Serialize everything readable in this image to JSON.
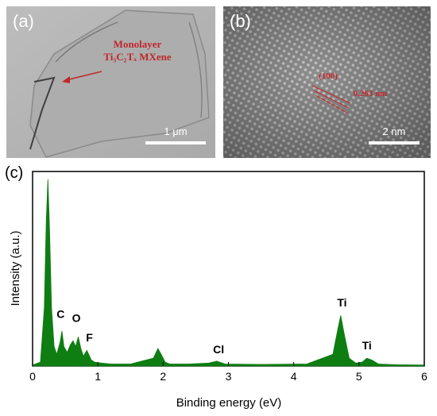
{
  "panel_a": {
    "letter": "(a)",
    "annotation_line1": "Monolayer",
    "annotation_line2": "Ti₃C₂Tₓ MXene",
    "scale_label": "1 μm"
  },
  "panel_b": {
    "letter": "(b)",
    "plane_label": "(100)",
    "spacing_label": "0.263 nm",
    "scale_label": "2 nm"
  },
  "colors": {
    "series": "#0e7d12",
    "annotation": "#c0282a"
  },
  "chart_data": {
    "type": "area",
    "panel_label": "(c)",
    "xlabel": "Binding energy (eV)",
    "ylabel": "Intensity (a.u.)",
    "xlim": [
      0,
      6
    ],
    "ylim": [
      0,
      1
    ],
    "xticks": [
      0,
      1,
      2,
      3,
      4,
      5,
      6
    ],
    "series": [
      {
        "x": [
          0.0,
          0.12,
          0.18,
          0.21,
          0.235,
          0.26,
          0.29,
          0.33,
          0.37,
          0.42,
          0.45,
          0.48,
          0.53,
          0.58,
          0.62,
          0.66,
          0.7,
          0.74,
          0.78,
          0.83,
          0.86,
          0.9,
          0.95,
          1.05,
          1.2,
          1.5,
          1.85,
          1.92,
          1.97,
          2.03,
          2.1,
          2.4,
          2.7,
          2.82,
          2.95,
          3.5,
          4.2,
          4.6,
          4.67,
          4.72,
          4.77,
          4.85,
          4.95,
          5.05,
          5.12,
          5.2,
          5.3,
          5.6,
          6.0
        ],
        "y": [
          0.005,
          0.02,
          0.3,
          0.75,
          0.96,
          0.7,
          0.3,
          0.1,
          0.06,
          0.12,
          0.18,
          0.1,
          0.07,
          0.11,
          0.13,
          0.1,
          0.15,
          0.09,
          0.05,
          0.08,
          0.06,
          0.03,
          0.02,
          0.015,
          0.01,
          0.01,
          0.04,
          0.09,
          0.06,
          0.02,
          0.01,
          0.01,
          0.015,
          0.025,
          0.01,
          0.008,
          0.01,
          0.06,
          0.18,
          0.26,
          0.17,
          0.04,
          0.015,
          0.02,
          0.04,
          0.03,
          0.01,
          0.006,
          0.005
        ]
      }
    ],
    "annotations": [
      {
        "text": "C",
        "x": 0.43,
        "y": 0.23
      },
      {
        "text": "O",
        "x": 0.67,
        "y": 0.21
      },
      {
        "text": "F",
        "x": 0.87,
        "y": 0.11
      },
      {
        "text": "Cl",
        "x": 2.85,
        "y": 0.05
      },
      {
        "text": "Ti",
        "x": 4.74,
        "y": 0.29
      },
      {
        "text": "Ti",
        "x": 5.12,
        "y": 0.07
      }
    ]
  }
}
